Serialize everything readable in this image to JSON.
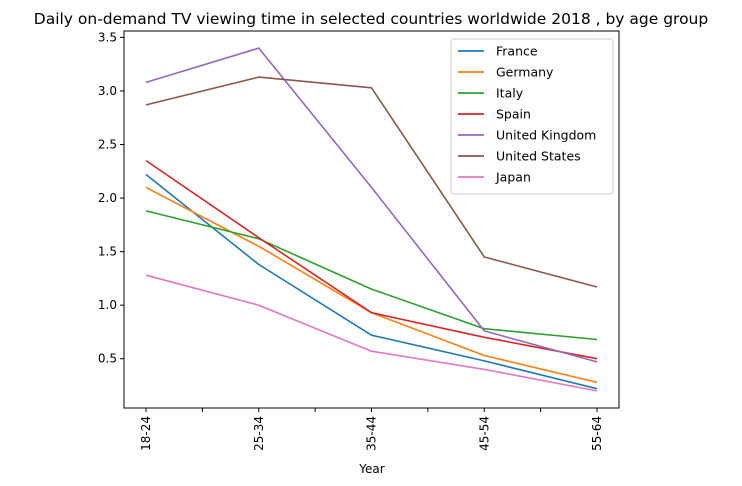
{
  "chart_data": {
    "type": "line",
    "title": "Daily on-demand TV viewing time in selected countries worldwide 2018 , by age group",
    "xlabel": "Year",
    "ylabel": "",
    "categories": [
      "18-24",
      "25-34",
      "35-44",
      "45-54",
      "55-64"
    ],
    "yticks": [
      "0.5",
      "1.0",
      "1.5",
      "2.0",
      "2.5",
      "3.0",
      "3.5"
    ],
    "ylim": [
      0.04,
      3.56
    ],
    "grid": false,
    "legend_position": "top-right",
    "series": [
      {
        "name": "France",
        "color": "#1f77b4",
        "values": [
          2.22,
          1.38,
          0.72,
          0.48,
          0.22
        ]
      },
      {
        "name": "Germany",
        "color": "#ff7f0e",
        "values": [
          2.1,
          1.55,
          0.93,
          0.53,
          0.28
        ]
      },
      {
        "name": "Italy",
        "color": "#2ca02c",
        "values": [
          1.88,
          1.62,
          1.15,
          0.78,
          0.68
        ]
      },
      {
        "name": "Spain",
        "color": "#d62728",
        "values": [
          2.35,
          1.63,
          0.93,
          0.7,
          0.5
        ]
      },
      {
        "name": "United Kingdom",
        "color": "#9467bd",
        "values": [
          3.08,
          3.4,
          2.1,
          0.76,
          0.47
        ]
      },
      {
        "name": "United States",
        "color": "#8c564b",
        "values": [
          2.87,
          3.13,
          3.03,
          1.45,
          1.17
        ]
      },
      {
        "name": "Japan",
        "color": "#e377c2",
        "values": [
          1.28,
          1.0,
          0.57,
          0.4,
          0.2
        ]
      }
    ]
  }
}
